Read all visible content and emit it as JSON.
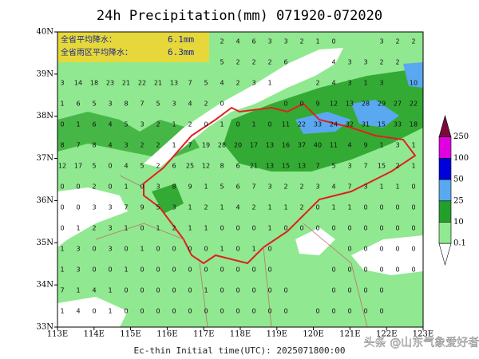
{
  "title": "24h Precipitation(mm) 071920-072020",
  "summary": [
    {
      "label": "全省平均降水：",
      "value": "6.1mm"
    },
    {
      "label": "全省雨区平均降水：",
      "value": "6.3mm"
    }
  ],
  "lat_labels": [
    "40N",
    "39N",
    "38N",
    "37N",
    "36N",
    "35N",
    "34N",
    "33N"
  ],
  "lon_labels": [
    "113E",
    "114E",
    "115E",
    "116E",
    "117E",
    "118E",
    "119E",
    "120E",
    "121E",
    "122E",
    "123E"
  ],
  "colorbar": {
    "levels": [
      250,
      100,
      50,
      25,
      10,
      0.1
    ],
    "colors": [
      "#7a0a3a",
      "#e000e0",
      "#0000dd",
      "#5aa8f0",
      "#22a02a",
      "#90e890",
      "#ffffff"
    ]
  },
  "station_values": [
    [
      null,
      null,
      null,
      null,
      null,
      null,
      null,
      null,
      null,
      null,
      2,
      4,
      6,
      3,
      3,
      2,
      1,
      0,
      null,
      null,
      3,
      2,
      2
    ],
    [
      null,
      null,
      null,
      null,
      null,
      null,
      null,
      null,
      null,
      null,
      5,
      2,
      2,
      2,
      6,
      null,
      null,
      4,
      3,
      3,
      2,
      2,
      null
    ],
    [
      3,
      14,
      18,
      23,
      21,
      22,
      21,
      13,
      7,
      5,
      4,
      2,
      3,
      1,
      null,
      null,
      2,
      4,
      3,
      1,
      3,
      null,
      10
    ],
    [
      1,
      6,
      5,
      3,
      8,
      7,
      5,
      3,
      4,
      2,
      0,
      null,
      null,
      null,
      0,
      0,
      9,
      12,
      13,
      28,
      29,
      27,
      22
    ],
    [
      0,
      1,
      6,
      4,
      5,
      3,
      2,
      1,
      2,
      0,
      1,
      0,
      1,
      0,
      11,
      22,
      33,
      24,
      32,
      31,
      15,
      33,
      18
    ],
    [
      8,
      7,
      8,
      4,
      3,
      2,
      2,
      1,
      7,
      19,
      28,
      20,
      17,
      13,
      16,
      37,
      40,
      11,
      4,
      9,
      1,
      3,
      1
    ],
    [
      12,
      17,
      5,
      0,
      4,
      5,
      2,
      6,
      25,
      12,
      8,
      6,
      21,
      13,
      15,
      13,
      7,
      5,
      3,
      7,
      15,
      2,
      1
    ],
    [
      0,
      0,
      2,
      0,
      1,
      0,
      3,
      8,
      9,
      1,
      5,
      6,
      7,
      3,
      2,
      2,
      3,
      4,
      7,
      3,
      1,
      1,
      0
    ],
    [
      0,
      0,
      3,
      3,
      7,
      9,
      5,
      3,
      1,
      2,
      1,
      4,
      2,
      1,
      1,
      2,
      0,
      1,
      1,
      0,
      0,
      0,
      0
    ],
    [
      0,
      1,
      2,
      3,
      1,
      0,
      1,
      2,
      1,
      1,
      0,
      0,
      0,
      1,
      0,
      0,
      0,
      0,
      0,
      0,
      0,
      0,
      0
    ],
    [
      1,
      3,
      0,
      3,
      0,
      1,
      0,
      0,
      0,
      0,
      1,
      0,
      1,
      0,
      null,
      null,
      null,
      null,
      0,
      0,
      0,
      0,
      0
    ],
    [
      1,
      3,
      0,
      0,
      1,
      0,
      0,
      0,
      0,
      0,
      0,
      0,
      0,
      0,
      null,
      null,
      null,
      0,
      0,
      0,
      0,
      0,
      0
    ],
    [
      7,
      1,
      4,
      1,
      0,
      0,
      0,
      0,
      0,
      1,
      0,
      0,
      0,
      0,
      0,
      null,
      null,
      0,
      0,
      0,
      0,
      null,
      null
    ],
    [
      1,
      4,
      0,
      1,
      0,
      0,
      0,
      0,
      0,
      0,
      0,
      0,
      0,
      0,
      0,
      null,
      0,
      0,
      0,
      0,
      0,
      null,
      null
    ]
  ],
  "footer": "Ec-thin   Initial time(UTC): 2025071800:00",
  "watermark": "头条 @山东气象爱好者"
}
